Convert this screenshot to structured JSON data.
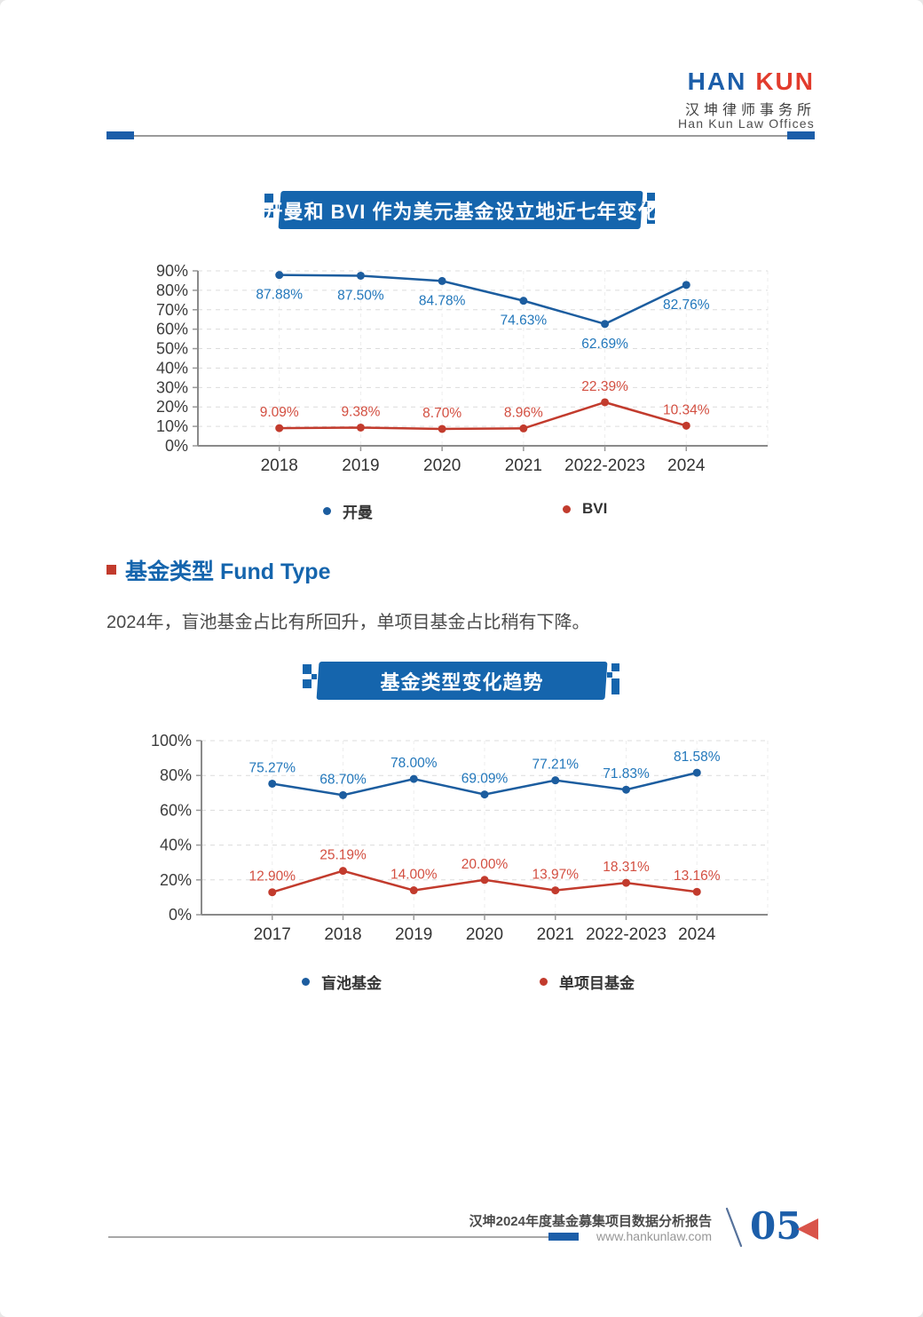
{
  "colors": {
    "brand_blue": "#1565ad",
    "brand_red": "#e23c2d",
    "chart_blue": "#1c5d9f",
    "chart_red": "#c23b2d",
    "label_blue": "#2277bb",
    "label_red": "#d34f41",
    "page_marker_red": "#d9544a"
  },
  "header": {
    "logo_text_1": "HAN",
    "logo_text_2": "KUN",
    "logo_cn": "汉坤律师事务所",
    "logo_en": "Han Kun Law Offices"
  },
  "section": {
    "title": "基金类型 Fund Type",
    "paragraph": "2024年，盲池基金占比有所回升，单项目基金占比稍有下降。"
  },
  "chart_data": [
    {
      "type": "line",
      "title": "开曼和 BVI 作为美元基金设立地近七年变化",
      "categories": [
        "2018",
        "2019",
        "2020",
        "2021",
        "2022-2023",
        "2024"
      ],
      "series": [
        {
          "name": "开曼",
          "color": "#1c5d9f",
          "label_color": "#2277bb",
          "values": [
            87.88,
            87.5,
            84.78,
            74.63,
            62.69,
            82.76
          ],
          "labels": [
            "87.88%",
            "87.50%",
            "84.78%",
            "74.63%",
            "62.69%",
            "82.76%"
          ],
          "label_position": "below"
        },
        {
          "name": "BVI",
          "color": "#c23b2d",
          "label_color": "#d34f41",
          "values": [
            9.09,
            9.38,
            8.7,
            8.96,
            22.39,
            10.34
          ],
          "labels": [
            "9.09%",
            "9.38%",
            "8.70%",
            "8.96%",
            "22.39%",
            "10.34%"
          ],
          "label_position": "above"
        }
      ],
      "ylim": [
        0,
        90
      ],
      "ytick_step": 10,
      "ytick_suffix": "%",
      "grid": true,
      "legend_position": "bottom"
    },
    {
      "type": "line",
      "title": "基金类型变化趋势",
      "categories": [
        "2017",
        "2018",
        "2019",
        "2020",
        "2021",
        "2022-2023",
        "2024"
      ],
      "series": [
        {
          "name": "盲池基金",
          "color": "#1c5d9f",
          "label_color": "#2277bb",
          "values": [
            75.27,
            68.7,
            78.0,
            69.09,
            77.21,
            71.83,
            81.58
          ],
          "labels": [
            "75.27%",
            "68.70%",
            "78.00%",
            "69.09%",
            "77.21%",
            "71.83%",
            "81.58%"
          ],
          "label_position": "above"
        },
        {
          "name": "单项目基金",
          "color": "#c23b2d",
          "label_color": "#d34f41",
          "values": [
            12.9,
            25.19,
            14.0,
            20.0,
            13.97,
            18.31,
            13.16
          ],
          "labels": [
            "12.90%",
            "25.19%",
            "14.00%",
            "20.00%",
            "13.97%",
            "18.31%",
            "13.16%"
          ],
          "label_position": "above"
        }
      ],
      "ylim": [
        0,
        100
      ],
      "ytick_step": 20,
      "ytick_suffix": "%",
      "grid": true,
      "legend_position": "bottom"
    }
  ],
  "footer": {
    "report_title": "汉坤2024年度基金募集项目数据分析报告",
    "website": "www.hankunlaw.com",
    "separator": "\\",
    "page_number": "05"
  }
}
